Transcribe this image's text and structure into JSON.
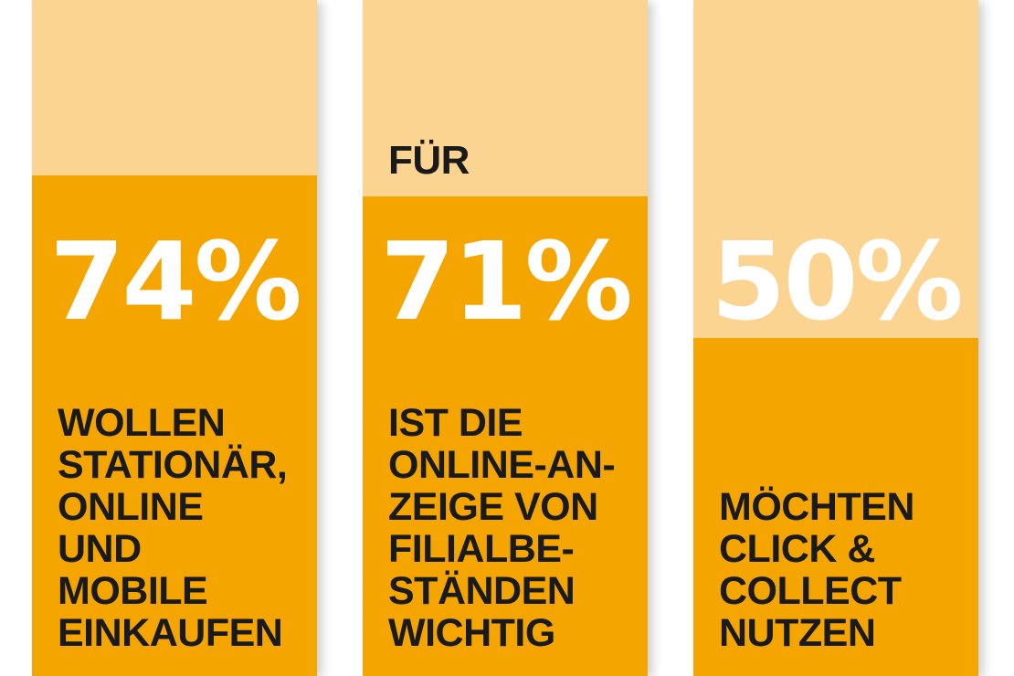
{
  "colors": {
    "background": "#ffffff",
    "bar_light": "#fcd491",
    "bar_fill": "#f5a500",
    "percent_text": "#ffffff",
    "label_text": "#1a1a1a"
  },
  "chart_data": {
    "type": "bar",
    "categories": [
      "WOLLEN STATIONÄR, ONLINE UND MOBILE EINKAUFEN",
      "IST DIE ONLINE-ANZEIGE VON FILIALBESTÄNDEN WICHTIG",
      "MÖCHTEN CLICK & COLLECT NUTZEN"
    ],
    "values": [
      74,
      71,
      50
    ],
    "unit": "%",
    "ylim": [
      0,
      100
    ],
    "columns": [
      {
        "percent": "74%",
        "prefix": "",
        "label": "WOLLEN\nSTATIONÄR,\nONLINE\nUND\nMOBILE\nEINKAUFEN",
        "value": 74
      },
      {
        "percent": "71%",
        "prefix": "FÜR",
        "label": "IST DIE\nONLINE-AN-\nZEIGE VON\nFILIALBE-\nSTÄNDEN\nWICHTIG",
        "value": 71
      },
      {
        "percent": "50%",
        "prefix": "",
        "label": "MÖCHTEN\nCLICK &\nCOLLECT\nNUTZEN",
        "value": 50
      }
    ]
  }
}
